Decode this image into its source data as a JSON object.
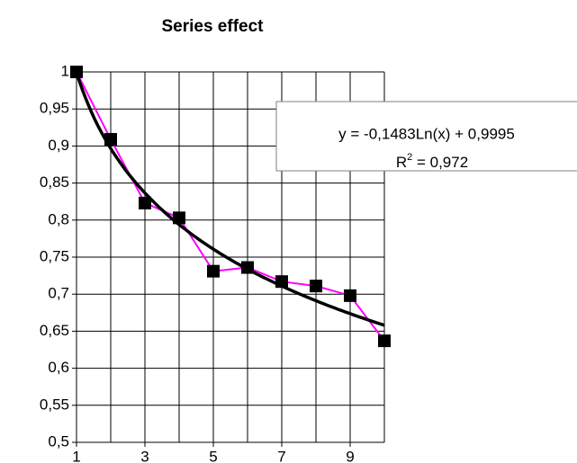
{
  "chart_data": {
    "type": "line",
    "title": "Series effect",
    "x": [
      1,
      2,
      3,
      4,
      5,
      6,
      7,
      8,
      9,
      10
    ],
    "series": [
      {
        "color": "#ff00ff",
        "marker_color": "#000000",
        "values": [
          1.0,
          0.909,
          0.823,
          0.803,
          0.731,
          0.736,
          0.717,
          0.711,
          0.698,
          0.637
        ]
      }
    ],
    "trendline": {
      "type": "log",
      "a": -0.1483,
      "b": 0.9995,
      "color": "#000000",
      "equation": "y = -0,1483Ln(x) + 0,9995",
      "r2_prefix": "R",
      "r2_sup": "2",
      "r2_rest": " = 0,972"
    },
    "xlim": [
      1,
      10
    ],
    "xticks": [
      1,
      3,
      5,
      7,
      9
    ],
    "ylim": [
      0.5,
      1
    ],
    "yticks": [
      {
        "value": 0.5,
        "label": "0,5"
      },
      {
        "value": 0.55,
        "label": "0,55"
      },
      {
        "value": 0.6,
        "label": "0,6"
      },
      {
        "value": 0.65,
        "label": "0,65"
      },
      {
        "value": 0.7,
        "label": "0,7"
      },
      {
        "value": 0.75,
        "label": "0,75"
      },
      {
        "value": 0.8,
        "label": "0,8"
      },
      {
        "value": 0.85,
        "label": "0,85"
      },
      {
        "value": 0.9,
        "label": "0,9"
      },
      {
        "value": 0.95,
        "label": "0,95"
      },
      1
    ],
    "grid": true
  }
}
